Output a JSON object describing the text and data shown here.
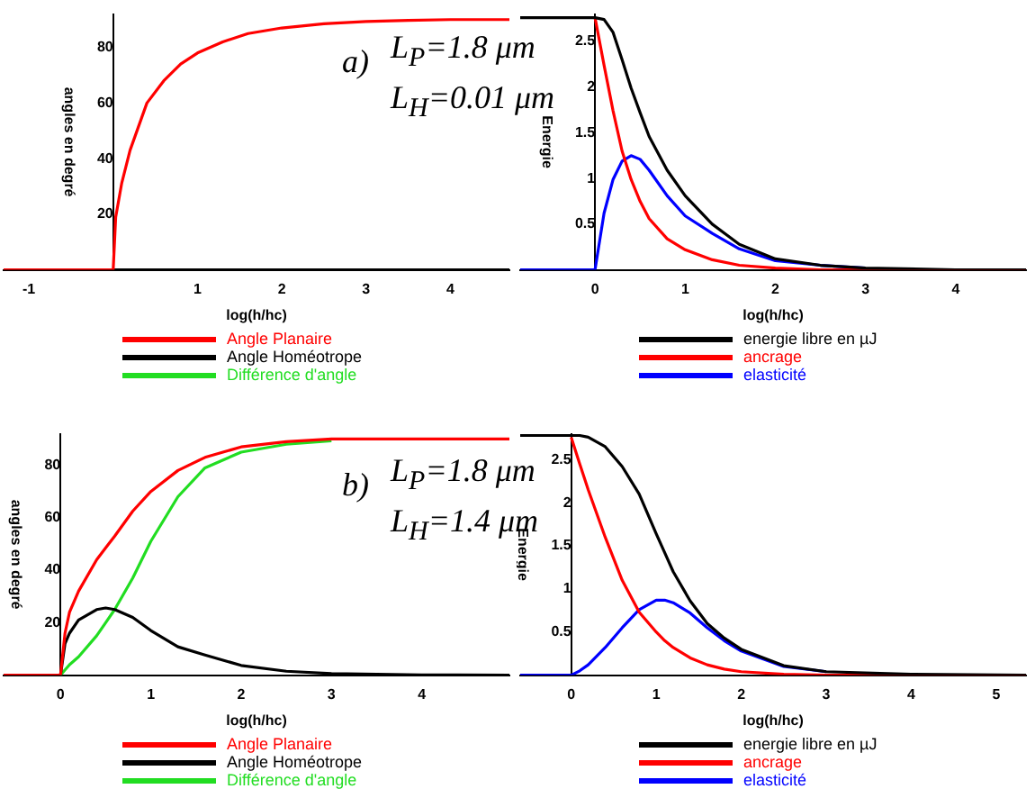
{
  "chart_data": [
    {
      "type": "line",
      "xlabel": "log(h/hc)",
      "ylabel": "angles en degré",
      "legend": "bottom",
      "annotations": [
        "a)",
        "L$_{P}$=1.8 μm",
        "L$_{H}$=0.01 μm"
      ],
      "xlim": [
        -1.3,
        4.7
      ],
      "ylim": [
        0,
        92
      ],
      "xticks": [
        -1,
        1,
        2,
        3,
        4
      ],
      "yticks": [
        20,
        40,
        60,
        80
      ],
      "x": [
        -1.3,
        0,
        0.03,
        0.1,
        0.2,
        0.4,
        0.6,
        0.8,
        1,
        1.3,
        1.6,
        2,
        2.5,
        3,
        3.5,
        4,
        4.7
      ],
      "series": [
        {
          "name": "Angle Planaire",
          "color": "#ff0000",
          "values": [
            0,
            0,
            19,
            31,
            43,
            60,
            68,
            74,
            78,
            82,
            85,
            87,
            88.5,
            89.3,
            89.7,
            90,
            90
          ]
        },
        {
          "name": "Angle Homéotrope",
          "color": "#000000",
          "values": [
            null,
            0,
            0,
            0,
            0,
            0,
            0,
            0,
            0,
            0,
            0,
            0,
            0,
            0,
            0,
            0,
            0
          ]
        },
        {
          "name": "Différence d'angle",
          "color": "#22dd22",
          "values": [
            null,
            null,
            null,
            null,
            null,
            null,
            null,
            null,
            null,
            null,
            null,
            null,
            null,
            null,
            null,
            null,
            null
          ]
        }
      ]
    },
    {
      "type": "line",
      "xlabel": "log(h/hc)",
      "ylabel": "Energie",
      "legend": "bottom",
      "xlim": [
        -0.83,
        4.78
      ],
      "ylim": [
        0,
        2.8
      ],
      "xticks": [
        0,
        1,
        2,
        3,
        4
      ],
      "yticks": [
        0.5,
        1,
        1.5,
        2,
        2.5
      ],
      "x": [
        -0.83,
        0,
        0.1,
        0.2,
        0.3,
        0.4,
        0.5,
        0.6,
        0.8,
        1,
        1.3,
        1.6,
        2,
        2.5,
        3,
        4,
        4.78
      ],
      "series": [
        {
          "name": "energie libre en µJ",
          "color": "#000000",
          "values": [
            2.76,
            2.76,
            2.74,
            2.6,
            2.3,
            1.99,
            1.72,
            1.46,
            1.09,
            0.81,
            0.5,
            0.28,
            0.12,
            0.05,
            0.02,
            0,
            0
          ]
        },
        {
          "name": "ancrage",
          "color": "#ff0000",
          "values": [
            null,
            2.76,
            2.24,
            1.74,
            1.3,
            0.99,
            0.75,
            0.56,
            0.34,
            0.22,
            0.11,
            0.05,
            0.02,
            0,
            0,
            0,
            0
          ]
        },
        {
          "name": "elasticité",
          "color": "#0000ff",
          "values": [
            0,
            0,
            0.62,
            0.99,
            1.19,
            1.25,
            1.21,
            1.09,
            0.81,
            0.59,
            0.4,
            0.23,
            0.1,
            0.05,
            0.02,
            null,
            null
          ]
        }
      ]
    },
    {
      "type": "line",
      "xlabel": "log(h/hc)",
      "ylabel": "angles en degré",
      "legend": "bottom",
      "annotations": [
        "b)",
        "L$_{P}$=1.8 μm",
        "L$_{H}$=1.4 μm"
      ],
      "xlim": [
        -0.63,
        4.97
      ],
      "ylim": [
        0,
        92
      ],
      "xticks": [
        0,
        1,
        2,
        3,
        4
      ],
      "yticks": [
        20,
        40,
        60,
        80
      ],
      "x": [
        -0.63,
        0,
        0.05,
        0.1,
        0.2,
        0.4,
        0.5,
        0.6,
        0.8,
        1,
        1.3,
        1.6,
        2,
        2.5,
        3,
        4,
        4.97
      ],
      "series": [
        {
          "name": "Angle Planaire",
          "color": "#ff0000",
          "values": [
            0,
            0,
            16,
            24,
            32,
            44,
            48.5,
            53,
            62.5,
            70,
            78,
            83,
            87,
            89,
            90,
            90,
            90
          ]
        },
        {
          "name": "Angle Homéotrope",
          "color": "#000000",
          "values": [
            null,
            0,
            12,
            16,
            21,
            25,
            25.6,
            25,
            22,
            17,
            10.8,
            7.7,
            3.7,
            1.5,
            0.6,
            0.1,
            0
          ]
        },
        {
          "name": "Différence d'angle",
          "color": "#22dd22",
          "values": [
            null,
            0,
            2,
            4,
            7,
            15,
            20,
            25,
            37,
            51,
            68,
            79,
            85,
            88,
            89.3,
            null,
            null
          ]
        }
      ]
    },
    {
      "type": "line",
      "xlabel": "log(h/hc)",
      "ylabel": "Energie",
      "legend": "bottom",
      "xlim": [
        -0.6,
        5.35
      ],
      "ylim": [
        0,
        2.8
      ],
      "xticks": [
        0,
        1,
        2,
        3,
        4,
        5
      ],
      "yticks": [
        0.5,
        1,
        1.5,
        2,
        2.5
      ],
      "x": [
        -0.6,
        0,
        0.1,
        0.2,
        0.4,
        0.6,
        0.8,
        1,
        1.1,
        1.2,
        1.4,
        1.6,
        1.8,
        2,
        2.5,
        3,
        4,
        5.35
      ],
      "series": [
        {
          "name": "energie libre en µJ",
          "color": "#000000",
          "values": [
            2.78,
            2.78,
            2.78,
            2.76,
            2.65,
            2.42,
            2.1,
            1.64,
            1.42,
            1.2,
            0.86,
            0.6,
            0.43,
            0.3,
            0.11,
            0.04,
            0.01,
            0
          ]
        },
        {
          "name": "ancrage",
          "color": "#ff0000",
          "values": [
            null,
            2.76,
            2.45,
            2.15,
            1.6,
            1.1,
            0.73,
            0.5,
            0.4,
            0.32,
            0.2,
            0.12,
            0.07,
            0.04,
            0.01,
            0,
            0,
            0
          ]
        },
        {
          "name": "elasticité",
          "color": "#0000ff",
          "values": [
            0,
            0,
            0.05,
            0.12,
            0.32,
            0.55,
            0.76,
            0.87,
            0.87,
            0.84,
            0.72,
            0.55,
            0.4,
            0.28,
            0.1,
            0.04,
            null,
            null
          ]
        }
      ]
    }
  ]
}
